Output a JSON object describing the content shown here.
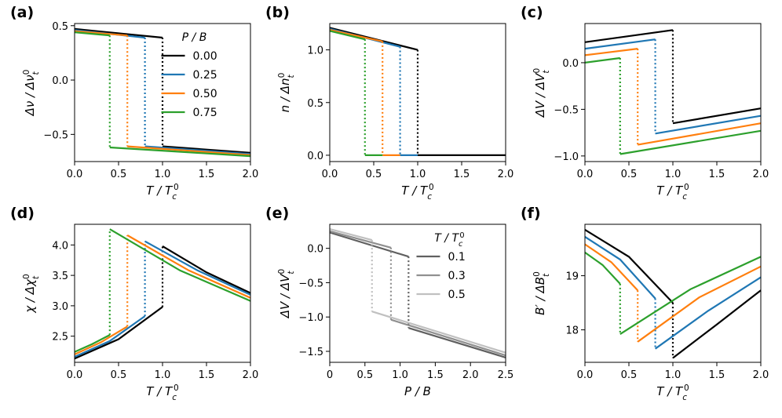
{
  "colors": {
    "s0": "#000000",
    "s25": "#1f77b4",
    "s50": "#ff7f0e",
    "s75": "#2ca02c",
    "t01": "#606060",
    "t03": "#909090",
    "t05": "#c0c0c0"
  },
  "chart_data": [
    {
      "panel": "(a)",
      "type": "line",
      "xlabel": "T / T_c^0",
      "ylabel": "Δν / Δν_t^0",
      "xlim": [
        0,
        2
      ],
      "ylim": [
        -0.75,
        0.52
      ],
      "xticks": [
        0,
        0.5,
        1.0,
        1.5,
        2.0
      ],
      "xticklabels": [
        "0.0",
        "0.5",
        "1.0",
        "1.5",
        "2.0"
      ],
      "yticks": [
        -0.5,
        0.0,
        0.5
      ],
      "yticklabels": [
        "−0.5",
        "0.0",
        "0.5"
      ],
      "legend": {
        "title": "P / B",
        "entries": [
          "0.00",
          "0.25",
          "0.50",
          "0.75"
        ],
        "position": "right"
      },
      "series": [
        {
          "name": "0.00",
          "color": "#000000",
          "lo": [
            [
              0,
              0.47
            ],
            [
              1.0,
              0.39
            ]
          ],
          "hi": [
            [
              1.0,
              -0.61
            ],
            [
              2.0,
              -0.67
            ]
          ],
          "jump": 1.0
        },
        {
          "name": "0.25",
          "color": "#1f77b4",
          "lo": [
            [
              0,
              0.46
            ],
            [
              0.8,
              0.39
            ]
          ],
          "hi": [
            [
              0.8,
              -0.61
            ],
            [
              2.0,
              -0.68
            ]
          ],
          "jump": 0.8
        },
        {
          "name": "0.50",
          "color": "#ff7f0e",
          "lo": [
            [
              0,
              0.45
            ],
            [
              0.6,
              0.41
            ]
          ],
          "hi": [
            [
              0.6,
              -0.61
            ],
            [
              2.0,
              -0.69
            ]
          ],
          "jump": 0.6
        },
        {
          "name": "0.75",
          "color": "#2ca02c",
          "lo": [
            [
              0,
              0.44
            ],
            [
              0.4,
              0.41
            ]
          ],
          "hi": [
            [
              0.4,
              -0.62
            ],
            [
              2.0,
              -0.7
            ]
          ],
          "jump": 0.4
        }
      ]
    },
    {
      "panel": "(b)",
      "type": "line",
      "xlabel": "T / T_c^0",
      "ylabel": "n / Δn_t^0",
      "xlim": [
        0,
        2
      ],
      "ylim": [
        -0.06,
        1.25
      ],
      "xticks": [
        0,
        0.5,
        1.0,
        1.5,
        2.0
      ],
      "xticklabels": [
        "0.0",
        "0.5",
        "1.0",
        "1.5",
        "2.0"
      ],
      "yticks": [
        0,
        0.5,
        1.0
      ],
      "yticklabels": [
        "0.0",
        "0.5",
        "1.0"
      ],
      "series": [
        {
          "name": "0.00",
          "color": "#000000",
          "lo": [
            [
              0,
              1.21
            ],
            [
              1.0,
              1.0
            ]
          ],
          "hi": [
            [
              1.0,
              0
            ],
            [
              2.0,
              0
            ]
          ],
          "jump": 1.0
        },
        {
          "name": "0.25",
          "color": "#1f77b4",
          "lo": [
            [
              0,
              1.2
            ],
            [
              0.8,
              1.03
            ]
          ],
          "hi": [
            [
              0.8,
              0
            ],
            [
              1.0,
              0
            ]
          ],
          "jump": 0.8
        },
        {
          "name": "0.50",
          "color": "#ff7f0e",
          "lo": [
            [
              0,
              1.19
            ],
            [
              0.6,
              1.08
            ]
          ],
          "hi": [
            [
              0.6,
              0
            ],
            [
              0.8,
              0
            ]
          ],
          "jump": 0.6
        },
        {
          "name": "0.75",
          "color": "#2ca02c",
          "lo": [
            [
              0,
              1.18
            ],
            [
              0.4,
              1.1
            ]
          ],
          "hi": [
            [
              0.4,
              0
            ],
            [
              0.6,
              0
            ]
          ],
          "jump": 0.4
        }
      ]
    },
    {
      "panel": "(c)",
      "type": "line",
      "xlabel": "T / T_c^0",
      "ylabel": "ΔV / ΔV_t^0",
      "xlim": [
        0,
        2
      ],
      "ylim": [
        -1.06,
        0.42
      ],
      "xticks": [
        0,
        0.5,
        1.0,
        1.5,
        2.0
      ],
      "xticklabels": [
        "0.0",
        "0.5",
        "1.0",
        "1.5",
        "2.0"
      ],
      "yticks": [
        -1.0,
        -0.5,
        0.0
      ],
      "yticklabels": [
        "−1.0",
        "−0.5",
        "0.0"
      ],
      "series": [
        {
          "name": "0.00",
          "color": "#000000",
          "lo": [
            [
              0,
              0.22
            ],
            [
              1.0,
              0.35
            ]
          ],
          "hi": [
            [
              1.0,
              -0.65
            ],
            [
              2.0,
              -0.49
            ]
          ],
          "jump": 1.0
        },
        {
          "name": "0.25",
          "color": "#1f77b4",
          "lo": [
            [
              0,
              0.15
            ],
            [
              0.8,
              0.25
            ]
          ],
          "hi": [
            [
              0.8,
              -0.76
            ],
            [
              2.0,
              -0.57
            ]
          ],
          "jump": 0.8
        },
        {
          "name": "0.50",
          "color": "#ff7f0e",
          "lo": [
            [
              0,
              0.08
            ],
            [
              0.6,
              0.15
            ]
          ],
          "hi": [
            [
              0.6,
              -0.88
            ],
            [
              2.0,
              -0.65
            ]
          ],
          "jump": 0.6
        },
        {
          "name": "0.75",
          "color": "#2ca02c",
          "lo": [
            [
              0,
              0.0
            ],
            [
              0.4,
              0.05
            ]
          ],
          "hi": [
            [
              0.4,
              -0.98
            ],
            [
              2.0,
              -0.73
            ]
          ],
          "jump": 0.4
        }
      ]
    },
    {
      "panel": "(d)",
      "type": "line",
      "xlabel": "T / T_c^0",
      "ylabel": "χ / Δχ_t^0",
      "xlim": [
        0,
        2
      ],
      "ylim": [
        2.07,
        4.34
      ],
      "xticks": [
        0,
        0.5,
        1.0,
        1.5,
        2.0
      ],
      "xticklabels": [
        "0.0",
        "0.5",
        "1.0",
        "1.5",
        "2.0"
      ],
      "yticks": [
        2.5,
        3.0,
        3.5,
        4.0
      ],
      "yticklabels": [
        "2.5",
        "3.0",
        "3.5",
        "4.0"
      ],
      "series": [
        {
          "name": "0.00",
          "color": "#000000",
          "lo": [
            [
              0,
              2.13
            ],
            [
              0.5,
              2.45
            ],
            [
              1.0,
              2.98
            ]
          ],
          "hi": [
            [
              1.0,
              3.98
            ],
            [
              1.5,
              3.55
            ],
            [
              2.0,
              3.21
            ]
          ],
          "jump": 1.0
        },
        {
          "name": "0.25",
          "color": "#1f77b4",
          "lo": [
            [
              0,
              2.16
            ],
            [
              0.4,
              2.42
            ],
            [
              0.8,
              2.83
            ]
          ],
          "hi": [
            [
              0.8,
              4.06
            ],
            [
              1.4,
              3.58
            ],
            [
              2.0,
              3.18
            ]
          ],
          "jump": 0.8
        },
        {
          "name": "0.50",
          "color": "#ff7f0e",
          "lo": [
            [
              0,
              2.2
            ],
            [
              0.3,
              2.4
            ],
            [
              0.6,
              2.66
            ]
          ],
          "hi": [
            [
              0.6,
              4.16
            ],
            [
              1.3,
              3.58
            ],
            [
              2.0,
              3.13
            ]
          ],
          "jump": 0.6
        },
        {
          "name": "0.75",
          "color": "#2ca02c",
          "lo": [
            [
              0,
              2.24
            ],
            [
              0.2,
              2.37
            ],
            [
              0.4,
              2.52
            ]
          ],
          "hi": [
            [
              0.4,
              4.26
            ],
            [
              1.2,
              3.58
            ],
            [
              2.0,
              3.08
            ]
          ],
          "jump": 0.4
        }
      ]
    },
    {
      "panel": "(e)",
      "type": "line",
      "xlabel": "P / B",
      "ylabel": "ΔV / ΔV_t^0",
      "xlim": [
        0,
        2.5
      ],
      "ylim": [
        -1.66,
        0.35
      ],
      "xticks": [
        0,
        0.5,
        1.0,
        1.5,
        2.0,
        2.5
      ],
      "xticklabels": [
        "0",
        "0.5",
        "1.0",
        "1.5",
        "2.0",
        "2.5"
      ],
      "yticks": [
        -1.5,
        -1.0,
        -0.5,
        0.0
      ],
      "yticklabels": [
        "−1.5",
        "−1.0",
        "−0.5",
        "0.0"
      ],
      "legend": {
        "title": "T / T_c^0",
        "entries": [
          "0.1",
          "0.3",
          "0.5"
        ],
        "position": "right"
      },
      "series": [
        {
          "name": "0.1",
          "color": "#606060",
          "lo": [
            [
              0,
              0.23
            ],
            [
              1.12,
              -0.12
            ]
          ],
          "hi": [
            [
              1.12,
              -1.16
            ],
            [
              2.5,
              -1.59
            ]
          ],
          "jump": 1.12
        },
        {
          "name": "0.3",
          "color": "#909090",
          "lo": [
            [
              0,
              0.25
            ],
            [
              0.87,
              0.01
            ]
          ],
          "hi": [
            [
              0.87,
              -1.04
            ],
            [
              2.5,
              -1.56
            ]
          ],
          "jump": 0.87
        },
        {
          "name": "0.5",
          "color": "#c0c0c0",
          "lo": [
            [
              0,
              0.28
            ],
            [
              0.6,
              0.12
            ]
          ],
          "hi": [
            [
              0.6,
              -0.92
            ],
            [
              2.5,
              -1.52
            ]
          ],
          "jump": 0.6
        }
      ]
    },
    {
      "panel": "(f)",
      "type": "line",
      "xlabel": "T / T_c^0",
      "ylabel": "B′ / ΔB_t^0",
      "xlim": [
        0,
        2
      ],
      "ylim": [
        17.4,
        19.95
      ],
      "xticks": [
        0,
        0.5,
        1.0,
        1.5,
        2.0
      ],
      "xticklabels": [
        "0.0",
        "0.5",
        "1.0",
        "1.5",
        "2.0"
      ],
      "yticks": [
        18,
        19
      ],
      "yticklabels": [
        "18",
        "19"
      ],
      "series": [
        {
          "name": "0.00",
          "color": "#000000",
          "lo": [
            [
              0,
              19.85
            ],
            [
              0.5,
              19.35
            ],
            [
              1.0,
              18.5
            ]
          ],
          "hi": [
            [
              1.0,
              17.48
            ],
            [
              1.5,
              18.1
            ],
            [
              2.0,
              18.73
            ]
          ],
          "jump": 1.0
        },
        {
          "name": "0.25",
          "color": "#1f77b4",
          "lo": [
            [
              0,
              19.72
            ],
            [
              0.4,
              19.3
            ],
            [
              0.8,
              18.58
            ]
          ],
          "hi": [
            [
              0.8,
              17.65
            ],
            [
              1.4,
              18.35
            ],
            [
              2.0,
              18.97
            ]
          ],
          "jump": 0.8
        },
        {
          "name": "0.50",
          "color": "#ff7f0e",
          "lo": [
            [
              0,
              19.58
            ],
            [
              0.3,
              19.25
            ],
            [
              0.6,
              18.73
            ]
          ],
          "hi": [
            [
              0.6,
              17.78
            ],
            [
              1.3,
              18.6
            ],
            [
              2.0,
              19.17
            ]
          ],
          "jump": 0.6
        },
        {
          "name": "0.75",
          "color": "#2ca02c",
          "lo": [
            [
              0,
              19.43
            ],
            [
              0.2,
              19.2
            ],
            [
              0.4,
              18.85
            ]
          ],
          "hi": [
            [
              0.4,
              17.92
            ],
            [
              1.2,
              18.75
            ],
            [
              2.0,
              19.35
            ]
          ],
          "jump": 0.4
        }
      ]
    }
  ]
}
